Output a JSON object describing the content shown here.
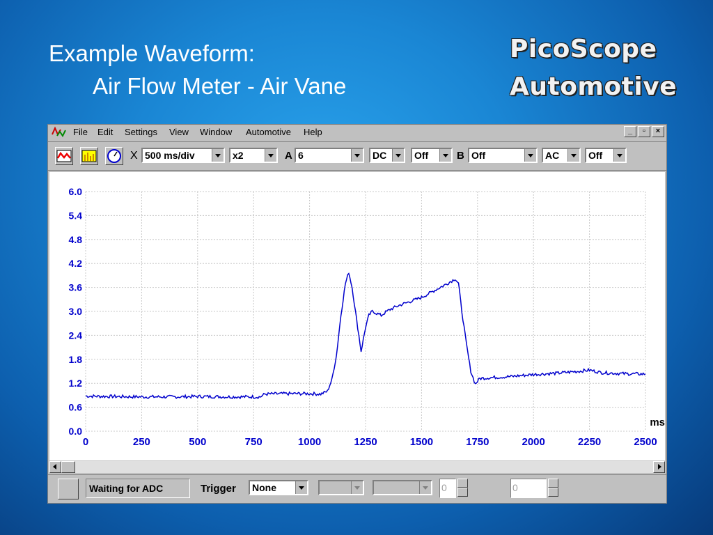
{
  "slide": {
    "title_line1": "Example Waveform:",
    "title_line2": "Air Flow Meter - Air Vane",
    "brand_line1": "PicoScope",
    "brand_line2": "Automotive"
  },
  "menu": [
    "File",
    "Edit",
    "Settings",
    "View",
    "Window",
    "Automotive",
    "Help"
  ],
  "toolbar": {
    "timebase_prefix": "X",
    "timebase": "500 ms/div",
    "zoom": "x2",
    "channel_a_label": "A",
    "channel_a_range": "6",
    "channel_a_coupling": "DC",
    "channel_a_offset": "Off",
    "channel_b_label": "B",
    "channel_b_range": "Off",
    "channel_b_coupling": "AC",
    "channel_b_offset": "Off"
  },
  "status": {
    "message": "Waiting for ADC",
    "trigger_label": "Trigger",
    "trigger_value": "None",
    "spin1_value": "0",
    "spin2_value": "0"
  },
  "colors": {
    "trace": "#0000cc",
    "axis_labels": "#0000cc",
    "grid": "#c8c8c8"
  },
  "chart_data": {
    "type": "line",
    "xlabel": "ms",
    "ylabel": "",
    "xlim": [
      0,
      2500
    ],
    "ylim": [
      0,
      6
    ],
    "x_ticks": [
      "0",
      "250",
      "500",
      "750",
      "1000",
      "1250",
      "1500",
      "1750",
      "2000",
      "2250",
      "2500"
    ],
    "y_ticks": [
      "0.0",
      "0.6",
      "1.2",
      "1.8",
      "2.4",
      "3.0",
      "3.6",
      "4.2",
      "4.8",
      "5.4",
      "6.0"
    ],
    "grid": true,
    "series": [
      {
        "x": [
          0,
          100,
          250,
          400,
          500,
          650,
          780,
          800,
          900,
          1000,
          1050,
          1080,
          1100,
          1120,
          1140,
          1160,
          1175,
          1190,
          1210,
          1230,
          1250,
          1265,
          1280,
          1300,
          1320,
          1340,
          1360,
          1400,
          1450,
          1500,
          1550,
          1600,
          1640,
          1650,
          1665,
          1680,
          1700,
          1720,
          1740,
          1760,
          1800,
          1900,
          2000,
          2100,
          2200,
          2250,
          2300,
          2400,
          2500
        ],
        "values": [
          0.88,
          0.87,
          0.86,
          0.86,
          0.87,
          0.86,
          0.86,
          0.93,
          0.94,
          0.94,
          0.93,
          1.0,
          1.3,
          1.9,
          2.9,
          3.7,
          3.98,
          3.6,
          2.8,
          2.0,
          2.6,
          2.9,
          3.0,
          2.95,
          2.9,
          2.98,
          3.05,
          3.15,
          3.25,
          3.35,
          3.5,
          3.65,
          3.78,
          3.82,
          3.7,
          3.0,
          2.2,
          1.5,
          1.18,
          1.32,
          1.34,
          1.37,
          1.42,
          1.45,
          1.5,
          1.53,
          1.47,
          1.44,
          1.43
        ]
      }
    ]
  }
}
